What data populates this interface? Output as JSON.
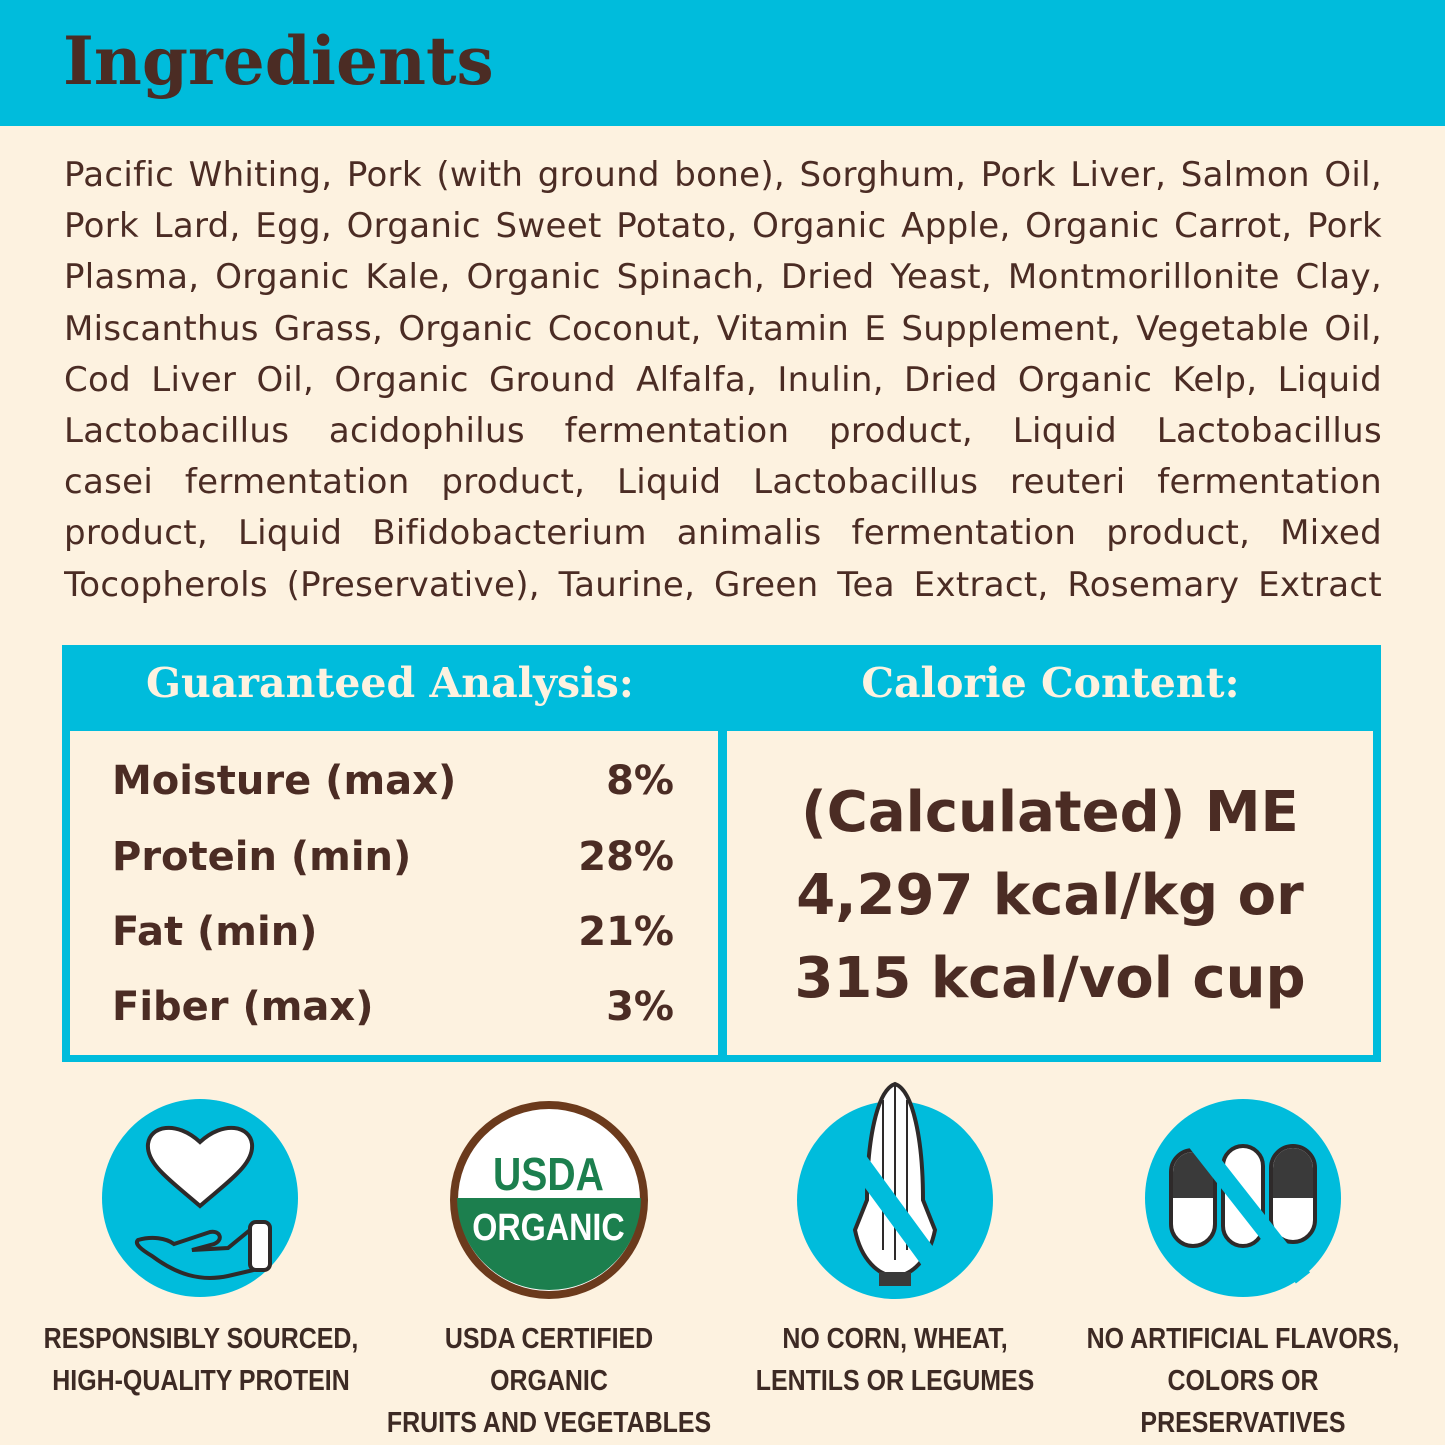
{
  "title": "Ingredients",
  "ingredients_lines": [
    "Pacific Whiting, Pork (with ground bone), Sorghum, Pork Liver, Salmon Oil,",
    "Pork Lard, Egg, Organic Sweet Potato, Organic Apple, Organic Carrot, Pork",
    "Plasma, Organic Kale, Organic Spinach, Dried Yeast, Montmorillonite Clay,",
    "Miscanthus Grass, Organic Coconut, Vitamin E Supplement, Vegetable Oil,",
    "Cod Liver Oil, Organic Ground Alfalfa, Inulin, Dried Organic Kelp, Liquid",
    "Lactobacillus acidophilus fermentation product, Liquid Lactobacillus",
    "casei fermentation product, Liquid Lactobacillus reuteri fermentation",
    "product, Liquid Bifidobacterium animalis fermentation product, Mixed",
    "Tocopherols (Preservative), Taurine, Green Tea Extract, Rosemary Extract"
  ],
  "analysis": {
    "heading": "Guaranteed Analysis:",
    "rows": [
      {
        "label": "Moisture (max)",
        "value": "8%"
      },
      {
        "label": "Protein (min)",
        "value": "28%"
      },
      {
        "label": "Fat (min)",
        "value": "21%"
      },
      {
        "label": "Fiber (max)",
        "value": "3%"
      }
    ]
  },
  "calorie": {
    "heading": "Calorie Content:",
    "lines": [
      "(Calculated) ME",
      "4,297 kcal/kg or",
      "315 kcal/vol cup"
    ]
  },
  "badges": [
    {
      "icon": "heart-hand-icon",
      "line1": "RESPONSIBLY SOURCED,",
      "line2": "HIGH-QUALITY PROTEIN"
    },
    {
      "icon": "usda-organic-seal",
      "seal_top": "USDA",
      "seal_bottom": "ORGANIC",
      "line1": "USDA CERTIFIED ORGANIC",
      "line2": "FRUITS AND VEGETABLES"
    },
    {
      "icon": "no-corn-icon",
      "line1": "NO CORN, WHEAT,",
      "line2": "LENTILS OR LEGUMES"
    },
    {
      "icon": "no-pills-icon",
      "line1": "NO ARTIFICIAL FLAVORS,",
      "line2": "COLORS OR PRESERVATIVES"
    }
  ],
  "colors": {
    "teal": "#00bcdc",
    "cream": "#fdf2e0",
    "brown": "#4b2c24",
    "usda_green": "#1c7f4e"
  }
}
